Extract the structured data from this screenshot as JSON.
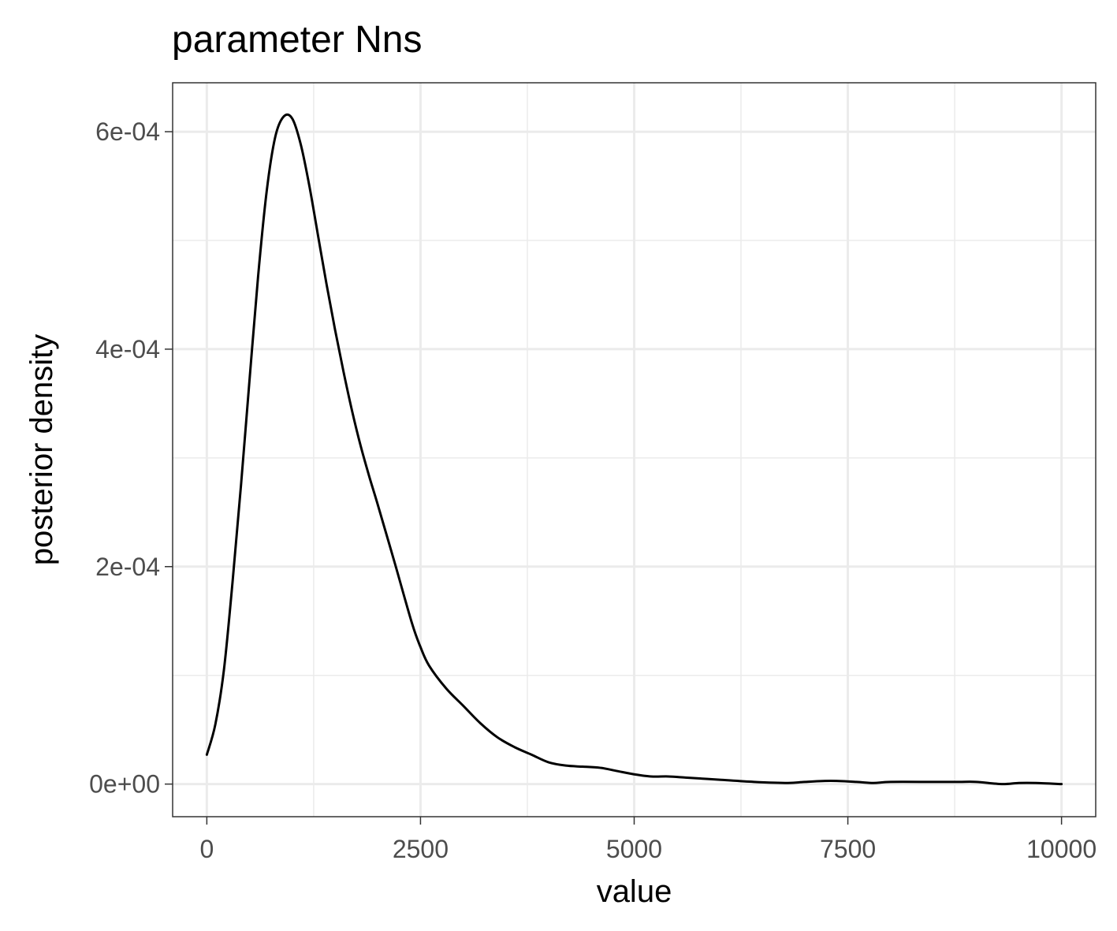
{
  "chart_data": {
    "type": "line",
    "title": "parameter Nns",
    "xlabel": "value",
    "ylabel": "posterior density",
    "xlim": [
      -400,
      10400
    ],
    "ylim": [
      -3e-05,
      0.000645
    ],
    "x_ticks": [
      0,
      2500,
      5000,
      7500,
      10000
    ],
    "x_tick_labels": [
      "0",
      "2500",
      "5000",
      "7500",
      "10000"
    ],
    "x_minor_ticks": [
      1250,
      3750,
      6250,
      8750
    ],
    "y_ticks": [
      0,
      0.0002,
      0.0004,
      0.0006
    ],
    "y_tick_labels": [
      "0e+00",
      "2e-04",
      "4e-04",
      "6e-04"
    ],
    "y_minor_ticks": [
      0.0001,
      0.0003,
      0.0005
    ],
    "grid": true,
    "series": [
      {
        "color": "#000000",
        "x": [
          0,
          100,
          200,
          300,
          400,
          500,
          600,
          700,
          800,
          900,
          1000,
          1100,
          1200,
          1300,
          1400,
          1500,
          1600,
          1700,
          1800,
          1900,
          2000,
          2200,
          2400,
          2500,
          2600,
          2800,
          3000,
          3200,
          3400,
          3600,
          3800,
          4000,
          4200,
          4400,
          4600,
          4800,
          5000,
          5200,
          5400,
          5600,
          5800,
          6000,
          6400,
          6800,
          7000,
          7300,
          7600,
          7800,
          8000,
          8500,
          8800,
          9000,
          9300,
          9500,
          9700,
          10000
        ],
        "y": [
          2.7e-05,
          5.5e-05,
          0.000105,
          0.000185,
          0.000275,
          0.000372,
          0.000467,
          0.000545,
          0.000595,
          0.000614,
          0.000612,
          0.000588,
          0.00055,
          0.000505,
          0.00046,
          0.000418,
          0.000379,
          0.000343,
          0.000311,
          0.000283,
          0.000257,
          0.000203,
          0.000148,
          0.000126,
          0.000109,
          8.8e-05,
          7.2e-05,
          5.6e-05,
          4.3e-05,
          3.4e-05,
          2.7e-05,
          2e-05,
          1.7e-05,
          1.6e-05,
          1.5e-05,
          1.2e-05,
          9e-06,
          7e-06,
          7e-06,
          6e-06,
          5e-06,
          4e-06,
          2e-06,
          1e-06,
          2e-06,
          3e-06,
          2e-06,
          1e-06,
          2e-06,
          2e-06,
          2e-06,
          2e-06,
          0,
          1e-06,
          1e-06,
          0
        ]
      }
    ]
  }
}
